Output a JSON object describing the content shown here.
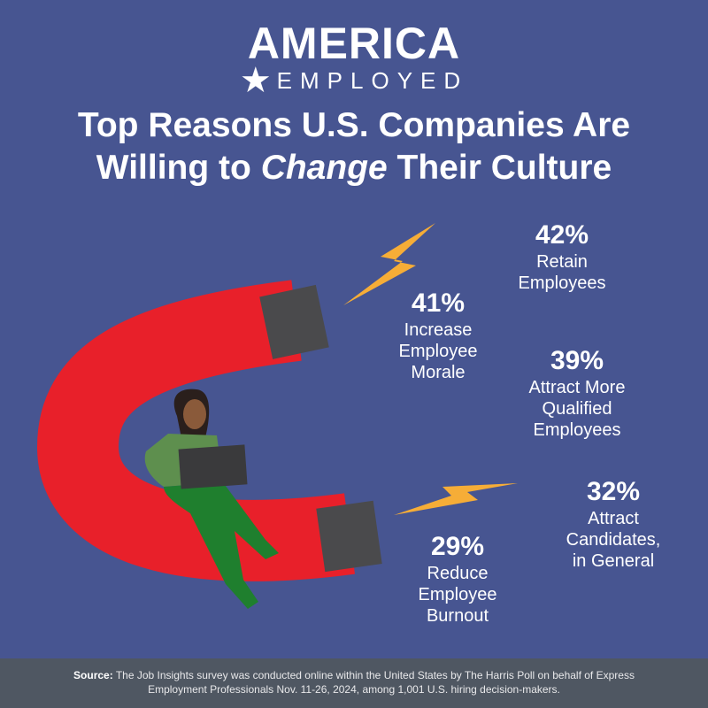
{
  "logo": {
    "top": "AMERICA",
    "bottom": "EMPLOYED"
  },
  "title": {
    "line1": "Top Reasons U.S. Companies Are",
    "line2_pre": "Willing to ",
    "line2_em": "Change",
    "line2_post": " Their Culture"
  },
  "stats": [
    {
      "pct": "42%",
      "label1": "Retain",
      "label2": "Employees",
      "label3": ""
    },
    {
      "pct": "41%",
      "label1": "Increase",
      "label2": "Employee",
      "label3": "Morale"
    },
    {
      "pct": "39%",
      "label1": "Attract More",
      "label2": "Qualified",
      "label3": "Employees"
    },
    {
      "pct": "32%",
      "label1": "Attract",
      "label2": "Candidates,",
      "label3": "in General"
    },
    {
      "pct": "29%",
      "label1": "Reduce",
      "label2": "Employee",
      "label3": "Burnout"
    }
  ],
  "footer": {
    "source_label": "Source:",
    "text1": " The Job Insights survey was conducted online within the United States by The Harris Poll on behalf of Express",
    "text2": "Employment Professionals Nov. 11-26, 2024, among 1,001 U.S. hiring decision-makers."
  },
  "colors": {
    "background": "#475591",
    "magnet": "#e8202a",
    "caps": "#4a4a4c",
    "bolt": "#f6ad37",
    "footer": "#4f5762"
  }
}
